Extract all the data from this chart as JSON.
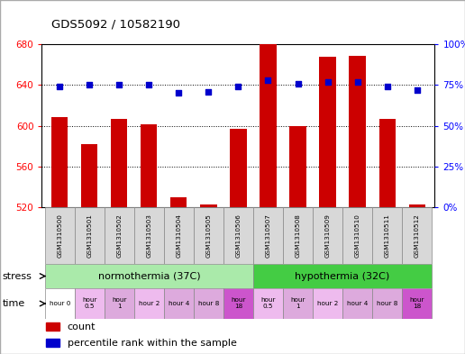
{
  "title": "GDS5092 / 10582190",
  "samples": [
    "GSM1310500",
    "GSM1310501",
    "GSM1310502",
    "GSM1310503",
    "GSM1310504",
    "GSM1310505",
    "GSM1310506",
    "GSM1310507",
    "GSM1310508",
    "GSM1310509",
    "GSM1310510",
    "GSM1310511",
    "GSM1310512"
  ],
  "counts": [
    608,
    582,
    607,
    601,
    530,
    523,
    597,
    681,
    600,
    668,
    669,
    607,
    523
  ],
  "percentiles": [
    74,
    75,
    75,
    75,
    70,
    71,
    74,
    78,
    76,
    77,
    77,
    74,
    72
  ],
  "ylim_left": [
    520,
    680
  ],
  "ylim_right": [
    0,
    100
  ],
  "yticks_left": [
    520,
    560,
    600,
    640,
    680
  ],
  "yticks_right": [
    0,
    25,
    50,
    75,
    100
  ],
  "bar_color": "#cc0000",
  "dot_color": "#0000cc",
  "bg_color": "#ffffff",
  "normothermia_color": "#aaeaaa",
  "hypothermia_color": "#44cc44",
  "time_colors_norm": [
    "#ffffff",
    "#eebbee",
    "#ddaadd",
    "#eebbee",
    "#ddaadd",
    "#ddaadd",
    "#cc55cc"
  ],
  "time_colors_hyp": [
    "#eebbee",
    "#ddaadd",
    "#eebbee",
    "#ddaadd",
    "#ddaadd",
    "#cc55cc"
  ],
  "time_labels_norm": [
    "hour 0",
    "hour\n0.5",
    "hour\n1",
    "hour 2",
    "hour 4",
    "hour 8",
    "hour\n18"
  ],
  "time_labels_hyp": [
    "hour\n0.5",
    "hour\n1",
    "hour 2",
    "hour 4",
    "hour 8",
    "hour\n18"
  ],
  "norm_label": "normothermia (37C)",
  "hyp_label": "hypothermia (32C)"
}
